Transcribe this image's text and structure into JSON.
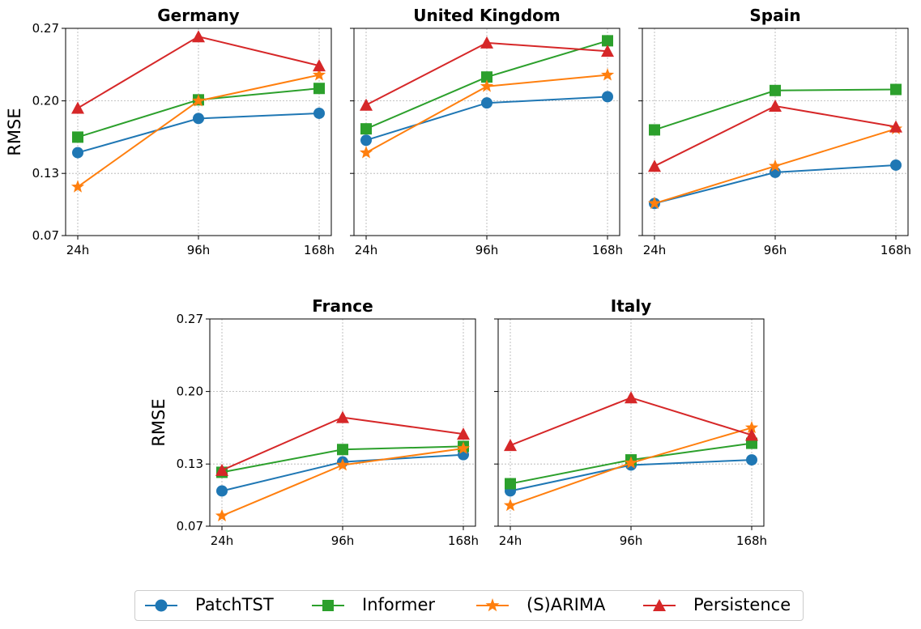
{
  "chart_data": [
    {
      "type": "line",
      "title": "Germany",
      "ylabel": "RMSE",
      "categories": [
        "24h",
        "96h",
        "168h"
      ],
      "yticks": [
        "0.07",
        "0.13",
        "0.20",
        "0.27"
      ],
      "ylim": [
        0.07,
        0.27
      ],
      "grid": true,
      "series": [
        {
          "name": "PatchTST",
          "values": [
            0.15,
            0.183,
            0.188
          ]
        },
        {
          "name": "Informer",
          "values": [
            0.165,
            0.201,
            0.212
          ]
        },
        {
          "name": "(S)ARIMA",
          "values": [
            0.117,
            0.2,
            0.225
          ]
        },
        {
          "name": "Persistence",
          "values": [
            0.193,
            0.262,
            0.234
          ]
        }
      ]
    },
    {
      "type": "line",
      "title": "United Kingdom",
      "ylabel": "",
      "categories": [
        "24h",
        "96h",
        "168h"
      ],
      "yticks": [
        "0.07",
        "0.13",
        "0.20",
        "0.27"
      ],
      "ylim": [
        0.07,
        0.27
      ],
      "grid": true,
      "series": [
        {
          "name": "PatchTST",
          "values": [
            0.162,
            0.198,
            0.204
          ]
        },
        {
          "name": "Informer",
          "values": [
            0.173,
            0.223,
            0.258
          ]
        },
        {
          "name": "(S)ARIMA",
          "values": [
            0.15,
            0.214,
            0.225
          ]
        },
        {
          "name": "Persistence",
          "values": [
            0.196,
            0.256,
            0.248
          ]
        }
      ]
    },
    {
      "type": "line",
      "title": "Spain",
      "ylabel": "",
      "categories": [
        "24h",
        "96h",
        "168h"
      ],
      "yticks": [
        "0.07",
        "0.13",
        "0.20",
        "0.27"
      ],
      "ylim": [
        0.07,
        0.27
      ],
      "grid": true,
      "series": [
        {
          "name": "PatchTST",
          "values": [
            0.101,
            0.131,
            0.138
          ]
        },
        {
          "name": "Informer",
          "values": [
            0.172,
            0.21,
            0.211
          ]
        },
        {
          "name": "(S)ARIMA",
          "values": [
            0.101,
            0.137,
            0.173
          ]
        },
        {
          "name": "Persistence",
          "values": [
            0.137,
            0.195,
            0.175
          ]
        }
      ]
    },
    {
      "type": "line",
      "title": "France",
      "ylabel": "RMSE",
      "categories": [
        "24h",
        "96h",
        "168h"
      ],
      "yticks": [
        "0.07",
        "0.13",
        "0.20",
        "0.27"
      ],
      "ylim": [
        0.07,
        0.27
      ],
      "grid": true,
      "series": [
        {
          "name": "PatchTST",
          "values": [
            0.104,
            0.132,
            0.139
          ]
        },
        {
          "name": "Informer",
          "values": [
            0.122,
            0.144,
            0.147
          ]
        },
        {
          "name": "(S)ARIMA",
          "values": [
            0.08,
            0.129,
            0.145
          ]
        },
        {
          "name": "Persistence",
          "values": [
            0.124,
            0.175,
            0.159
          ]
        }
      ]
    },
    {
      "type": "line",
      "title": "Italy",
      "ylabel": "",
      "categories": [
        "24h",
        "96h",
        "168h"
      ],
      "yticks": [
        "0.07",
        "0.13",
        "0.20",
        "0.27"
      ],
      "ylim": [
        0.07,
        0.27
      ],
      "grid": true,
      "series": [
        {
          "name": "PatchTST",
          "values": [
            0.104,
            0.129,
            0.134
          ]
        },
        {
          "name": "Informer",
          "values": [
            0.111,
            0.134,
            0.15
          ]
        },
        {
          "name": "(S)ARIMA",
          "values": [
            0.09,
            0.131,
            0.165
          ]
        },
        {
          "name": "Persistence",
          "values": [
            0.148,
            0.194,
            0.158
          ]
        }
      ]
    }
  ],
  "legend": {
    "placement": "bottom-center",
    "items": [
      {
        "name": "PatchTST",
        "color": "#1f77b4",
        "marker": "circle"
      },
      {
        "name": "Informer",
        "color": "#2ca02c",
        "marker": "square"
      },
      {
        "name": "(S)ARIMA",
        "color": "#ff7f0e",
        "marker": "star"
      },
      {
        "name": "Persistence",
        "color": "#d62728",
        "marker": "triangle"
      }
    ]
  }
}
